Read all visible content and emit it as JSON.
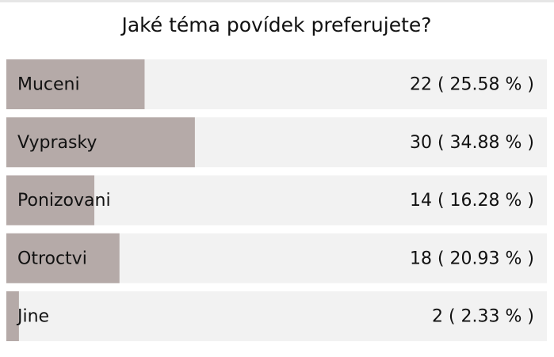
{
  "chart_data": {
    "type": "bar",
    "orientation": "horizontal",
    "title": "Jaké téma povídek preferujete?",
    "categories": [
      "Muceni",
      "Vyprasky",
      "Ponizovani",
      "Otroctvi",
      "Jine"
    ],
    "values": [
      25.58,
      34.88,
      16.28,
      20.93,
      2.33
    ],
    "value_labels": [
      "22 ( 25.58 % )",
      "30 ( 34.88 % )",
      "14 ( 16.28 % )",
      "18 ( 20.93 % )",
      "2 ( 2.33 % )"
    ],
    "color": "#b5aaa8",
    "xlim": [
      0,
      100
    ]
  }
}
